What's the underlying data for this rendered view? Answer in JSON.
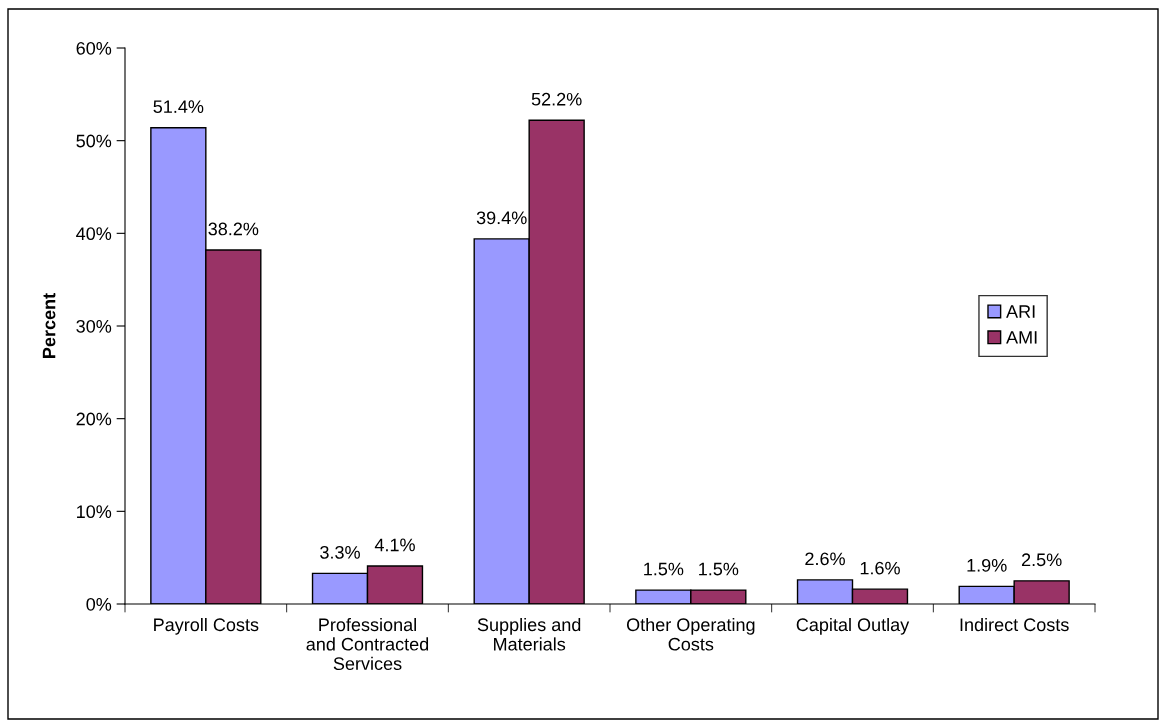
{
  "chart_data": {
    "type": "bar",
    "ylabel": "Percent",
    "categories": [
      "Payroll Costs",
      "Professional\nand Contracted\nServices",
      "Supplies and\nMaterials",
      "Other Operating\nCosts",
      "Capital Outlay",
      "Indirect Costs"
    ],
    "series": [
      {
        "name": "ARI",
        "color": "#9999ff",
        "values": [
          51.4,
          3.3,
          39.4,
          1.5,
          2.6,
          1.9
        ],
        "value_labels": [
          "51.4%",
          "3.3%",
          "39.4%",
          "1.5%",
          "2.6%",
          "1.9%"
        ]
      },
      {
        "name": "AMI",
        "color": "#993366",
        "values": [
          38.2,
          4.1,
          52.2,
          1.5,
          1.6,
          2.5
        ],
        "value_labels": [
          "38.2%",
          "4.1%",
          "52.2%",
          "1.5%",
          "1.6%",
          "2.5%"
        ]
      }
    ],
    "ylim": [
      0,
      60
    ],
    "yticks": [
      {
        "value": 0,
        "label": "0%"
      },
      {
        "value": 10,
        "label": "10%"
      },
      {
        "value": 20,
        "label": "20%"
      },
      {
        "value": 30,
        "label": "30%"
      },
      {
        "value": 40,
        "label": "40%"
      },
      {
        "value": 50,
        "label": "50%"
      },
      {
        "value": 60,
        "label": "60%"
      }
    ],
    "grid": false,
    "legend": "right"
  }
}
